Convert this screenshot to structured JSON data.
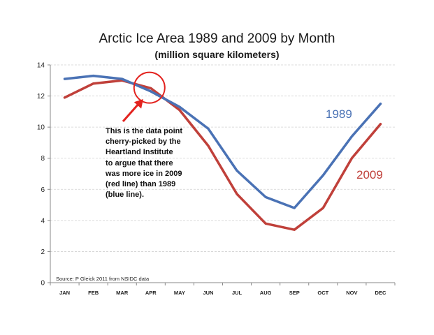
{
  "title": "Arctic Ice Area 1989 and 2009 by Month",
  "subtitle": "(million square kilometers)",
  "annotation": [
    "This is the data point",
    "cherry-picked by the",
    "Heartland Institute",
    "to argue that there",
    "was more ice in 2009",
    "(red line) than 1989",
    "(blue line)."
  ],
  "source": "Source: P Gleick 2011 from NSIDC data",
  "colors": {
    "1989": "#4a72b5",
    "2009": "#c0403a",
    "circle": "#e3231f",
    "arrow": "#e3231f",
    "grid": "#d0d0d0",
    "axis": "#888888"
  },
  "chart_data": {
    "type": "line",
    "title": "Arctic Ice Area 1989 and 2009 by Month",
    "subtitle": "(million square kilometers)",
    "categories": [
      "JAN",
      "FEB",
      "MAR",
      "APR",
      "MAY",
      "JUN",
      "JUL",
      "AUG",
      "SEP",
      "OCT",
      "NOV",
      "DEC"
    ],
    "ylim": [
      0,
      14
    ],
    "yticks": [
      0,
      2,
      4,
      6,
      8,
      10,
      12,
      14
    ],
    "grid": true,
    "series": [
      {
        "name": "1989",
        "color": "#4a72b5",
        "values": [
          13.1,
          13.3,
          13.1,
          12.3,
          11.3,
          9.9,
          7.2,
          5.5,
          4.8,
          6.9,
          9.4,
          11.5
        ]
      },
      {
        "name": "2009",
        "color": "#c0403a",
        "values": [
          11.9,
          12.8,
          13.0,
          12.5,
          11.1,
          8.8,
          5.7,
          3.8,
          3.4,
          4.8,
          8.0,
          10.2
        ]
      }
    ],
    "highlight": {
      "category": "APR"
    }
  }
}
